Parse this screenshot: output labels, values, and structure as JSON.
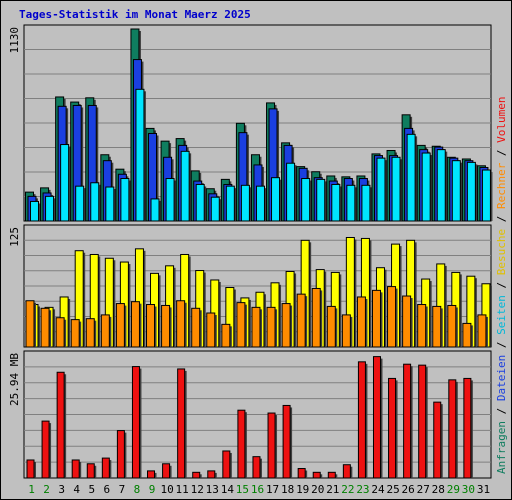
{
  "title": "Tages-Statistik im Monat Maerz 2025",
  "colors": {
    "background": "#c0c0c0",
    "hits": "#0f7d5f",
    "files": "#1a3fe0",
    "pages": "#00e5ff",
    "visits": "#ffff00",
    "sites": "#ff8c00",
    "volume": "#ee1111",
    "weekend": "#008000",
    "weekday": "#000000",
    "grid": "#808080"
  },
  "right_legend": {
    "panel1": [
      {
        "text": "Anfragen",
        "color": "#0f7d5f"
      },
      {
        "text": " / ",
        "color": "#000000"
      },
      {
        "text": "Dateien",
        "color": "#1a3fe0"
      },
      {
        "text": " / ",
        "color": "#000000"
      },
      {
        "text": "Seiten",
        "color": "#00b8d9"
      },
      {
        "text": " / ",
        "color": "#000000"
      },
      {
        "text": "Besuche",
        "color": "#e0c000"
      },
      {
        "text": " / ",
        "color": "#000000"
      },
      {
        "text": "Rechner",
        "color": "#ff8c00"
      },
      {
        "text": " / ",
        "color": "#000000"
      },
      {
        "text": "Volumen",
        "color": "#ee1111"
      }
    ]
  },
  "chart_data": [
    {
      "type": "bar",
      "ylabel_max": "1130",
      "ymax": 1130,
      "x": [
        "1",
        "2",
        "3",
        "4",
        "5",
        "6",
        "7",
        "8",
        "9",
        "10",
        "11",
        "12",
        "13",
        "14",
        "15",
        "16",
        "17",
        "18",
        "19",
        "20",
        "21",
        "22",
        "23",
        "24",
        "25",
        "26",
        "27",
        "28",
        "29",
        "30",
        "31"
      ],
      "series": [
        {
          "name": "Anfragen",
          "values": [
            170,
            195,
            730,
            700,
            725,
            390,
            305,
            1130,
            545,
            470,
            485,
            295,
            190,
            245,
            575,
            390,
            695,
            460,
            320,
            290,
            265,
            260,
            265,
            395,
            415,
            625,
            445,
            440,
            375,
            365,
            325
          ]
        },
        {
          "name": "Dateien",
          "values": [
            145,
            165,
            675,
            680,
            680,
            355,
            275,
            950,
            515,
            375,
            445,
            235,
            160,
            215,
            520,
            330,
            660,
            445,
            310,
            255,
            235,
            250,
            250,
            385,
            385,
            545,
            420,
            435,
            370,
            355,
            315
          ]
        },
        {
          "name": "Seiten",
          "values": [
            115,
            145,
            450,
            205,
            225,
            200,
            250,
            775,
            130,
            250,
            410,
            215,
            140,
            205,
            210,
            205,
            255,
            340,
            250,
            245,
            215,
            210,
            210,
            370,
            375,
            510,
            400,
            420,
            355,
            345,
            300
          ]
        }
      ]
    },
    {
      "type": "bar",
      "ylabel_max": "125",
      "ymax": 125,
      "x": [
        "1",
        "2",
        "3",
        "4",
        "5",
        "6",
        "7",
        "8",
        "9",
        "10",
        "11",
        "12",
        "13",
        "14",
        "15",
        "16",
        "17",
        "18",
        "19",
        "20",
        "21",
        "22",
        "23",
        "24",
        "25",
        "26",
        "27",
        "28",
        "29",
        "30",
        "31"
      ],
      "series": [
        {
          "name": "Besuche",
          "values": [
            45,
            42,
            53,
            102,
            98,
            94,
            90,
            104,
            78,
            86,
            98,
            81,
            71,
            63,
            52,
            58,
            68,
            80,
            113,
            82,
            79,
            116,
            115,
            84,
            109,
            113,
            72,
            88,
            79,
            75,
            67
          ]
        },
        {
          "name": "Rechner",
          "values": [
            49,
            41,
            31,
            29,
            30,
            34,
            46,
            48,
            45,
            44,
            49,
            41,
            36,
            24,
            47,
            42,
            42,
            46,
            56,
            62,
            43,
            34,
            53,
            60,
            64,
            54,
            45,
            43,
            44,
            25,
            34
          ]
        }
      ]
    },
    {
      "type": "bar",
      "ylabel_max": "25.94 MB",
      "ymax": 25.94,
      "x": [
        "1",
        "2",
        "3",
        "4",
        "5",
        "6",
        "7",
        "8",
        "9",
        "10",
        "11",
        "12",
        "13",
        "14",
        "15",
        "16",
        "17",
        "18",
        "19",
        "20",
        "21",
        "22",
        "23",
        "24",
        "25",
        "26",
        "27",
        "28",
        "29",
        "30",
        "31"
      ],
      "series": [
        {
          "name": "Volumen",
          "values": [
            3.8,
            12.0,
            22.3,
            3.8,
            3.0,
            4.2,
            10.0,
            23.5,
            1.5,
            3.0,
            23.0,
            1.2,
            1.5,
            5.7,
            14.3,
            4.5,
            13.7,
            15.3,
            2.0,
            1.2,
            1.2,
            2.8,
            24.5,
            25.6,
            21.0,
            24.0,
            23.8,
            16.0,
            20.7,
            21.0,
            0
          ]
        }
      ]
    }
  ]
}
